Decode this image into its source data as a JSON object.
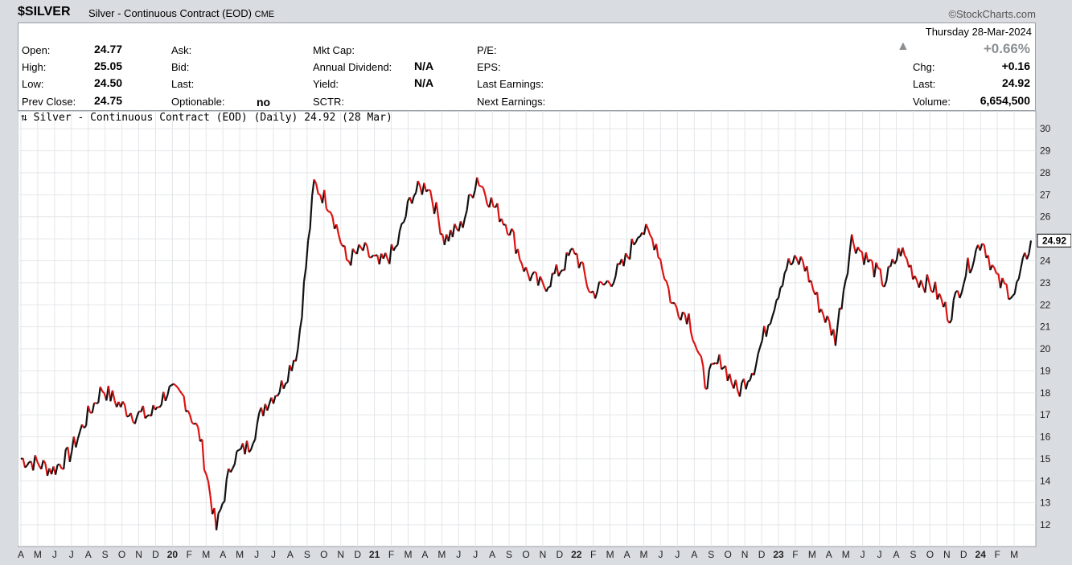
{
  "header": {
    "symbol": "$SILVER",
    "description": "Silver - Continuous Contract (EOD)",
    "exchange": "CME",
    "brand": "©StockCharts.com"
  },
  "info": {
    "open_label": "Open:",
    "open": "24.77",
    "high_label": "High:",
    "high": "25.05",
    "low_label": "Low:",
    "low": "24.50",
    "prev_label": "Prev Close:",
    "prev": "24.75",
    "ask_label": "Ask:",
    "bid_label": "Bid:",
    "last_label_mid": "Last:",
    "optionable_label": "Optionable:",
    "optionable": "no",
    "mktcap_label": "Mkt Cap:",
    "dividend_label": "Annual Dividend:",
    "dividend": "N/A",
    "yield_label": "Yield:",
    "yield": "N/A",
    "sctr_label": "SCTR:",
    "pe_label": "P/E:",
    "eps_label": "EPS:",
    "last_earn_label": "Last Earnings:",
    "next_earn_label": "Next Earnings:",
    "date": "Thursday  28-Mar-2024",
    "pct_change": "+0.66%",
    "chg_label": "Chg:",
    "chg": "+0.16",
    "last_label": "Last:",
    "last": "24.92",
    "volume_label": "Volume:",
    "volume": "6,654,500"
  },
  "chart_data": {
    "type": "line",
    "title": "Silver - Continuous Contract (EOD) (Daily) 24.92 (28 Mar)",
    "ylim": [
      11.6,
      30.3
    ],
    "y_ticks": [
      12,
      13,
      14,
      15,
      16,
      17,
      18,
      19,
      20,
      21,
      22,
      23,
      24,
      25,
      26,
      27,
      28,
      29,
      30
    ],
    "last_value_label": "24.92",
    "x_month_labels": [
      "A",
      "M",
      "J",
      "J",
      "A",
      "S",
      "O",
      "N",
      "D",
      "20",
      "F",
      "M",
      "A",
      "M",
      "J",
      "J",
      "A",
      "S",
      "O",
      "N",
      "D",
      "21",
      "F",
      "M",
      "A",
      "M",
      "J",
      "J",
      "A",
      "S",
      "O",
      "N",
      "D",
      "22",
      "F",
      "M",
      "A",
      "M",
      "J",
      "J",
      "A",
      "S",
      "O",
      "N",
      "D",
      "23",
      "F",
      "M",
      "A",
      "M",
      "J",
      "J",
      "A",
      "S",
      "O",
      "N",
      "D",
      "24",
      "F",
      "M"
    ],
    "series": [
      {
        "x": [
          "2019-04",
          "2019-05",
          "2019-06",
          "2019-07",
          "2019-08",
          "2019-09",
          "2019-10",
          "2019-11",
          "2019-12",
          "2020-01",
          "2020-02",
          "2020-03a",
          "2020-03b",
          "2020-04",
          "2020-05",
          "2020-06",
          "2020-07a",
          "2020-07b",
          "2020-08a",
          "2020-08b",
          "2020-09",
          "2020-10",
          "2020-11",
          "2020-12",
          "2021-01",
          "2021-02",
          "2021-03",
          "2021-04",
          "2021-05",
          "2021-06",
          "2021-07",
          "2021-08",
          "2021-09",
          "2021-10",
          "2021-11",
          "2021-12",
          "2022-01",
          "2022-02",
          "2022-03",
          "2022-04",
          "2022-05",
          "2022-06",
          "2022-07",
          "2022-08",
          "2022-09",
          "2022-10",
          "2022-11",
          "2022-12",
          "2023-01",
          "2023-02",
          "2023-03",
          "2023-04",
          "2023-05",
          "2023-06",
          "2023-07",
          "2023-08",
          "2023-09",
          "2023-10",
          "2023-11",
          "2023-12",
          "2024-01",
          "2024-02",
          "2024-03"
        ],
        "values": [
          15.0,
          14.8,
          14.5,
          15.2,
          16.8,
          18.2,
          17.5,
          17.0,
          17.0,
          18.1,
          17.8,
          16.0,
          11.8,
          15.0,
          15.6,
          17.5,
          18.3,
          20.0,
          27.5,
          26.5,
          24.0,
          24.5,
          23.8,
          24.5,
          27.0,
          27.5,
          25.0,
          25.5,
          27.8,
          26.5,
          25.5,
          23.5,
          22.8,
          23.5,
          24.5,
          22.5,
          23.0,
          23.8,
          25.5,
          24.8,
          22.0,
          21.5,
          18.5,
          19.5,
          18.0,
          19.2,
          21.5,
          23.8,
          24.0,
          22.0,
          20.5,
          25.0,
          24.0,
          23.0,
          24.5,
          23.2,
          22.8,
          21.5,
          23.5,
          25.0,
          23.0,
          22.5,
          24.92
        ]
      }
    ]
  }
}
